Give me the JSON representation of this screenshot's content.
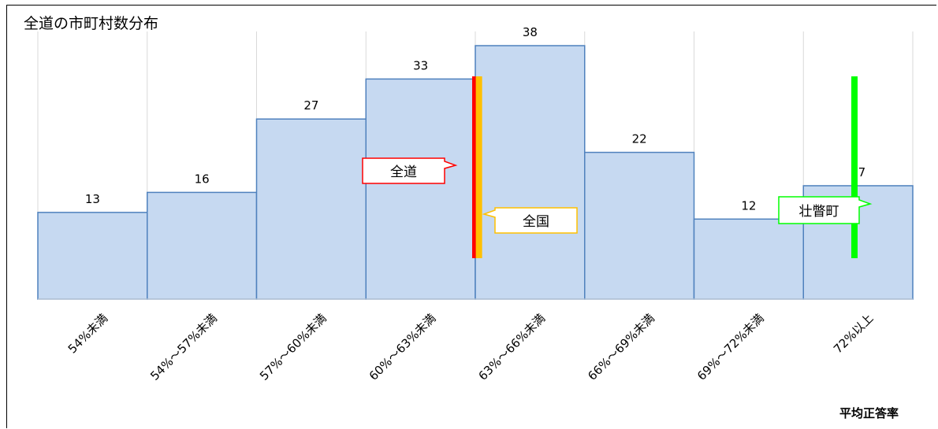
{
  "chart_data": {
    "type": "bar",
    "title": "全道の市町村数分布",
    "xlabel": "平均正答率",
    "ylabel": "",
    "categories": [
      "54%未満",
      "54%～57%未満",
      "57%～60%未満",
      "60%～63%未満",
      "63%～66%未満",
      "66%～69%未満",
      "69%～72%未満",
      "72%以上"
    ],
    "values": [
      13,
      16,
      27,
      33,
      38,
      22,
      12,
      17
    ],
    "ylim": [
      0,
      38
    ],
    "grid": "vertical",
    "bar_color": "#c6d9f1",
    "bar_edge_color": "#4f81bd",
    "markers": [
      {
        "label": "全道",
        "color": "#ff0000",
        "position_percent": 63.0
      },
      {
        "label": "全国",
        "color": "#ffc000",
        "position_percent": 63.1
      },
      {
        "label": "壮瞥町",
        "color": "#00ff00",
        "position_percent": 73.4
      }
    ]
  }
}
